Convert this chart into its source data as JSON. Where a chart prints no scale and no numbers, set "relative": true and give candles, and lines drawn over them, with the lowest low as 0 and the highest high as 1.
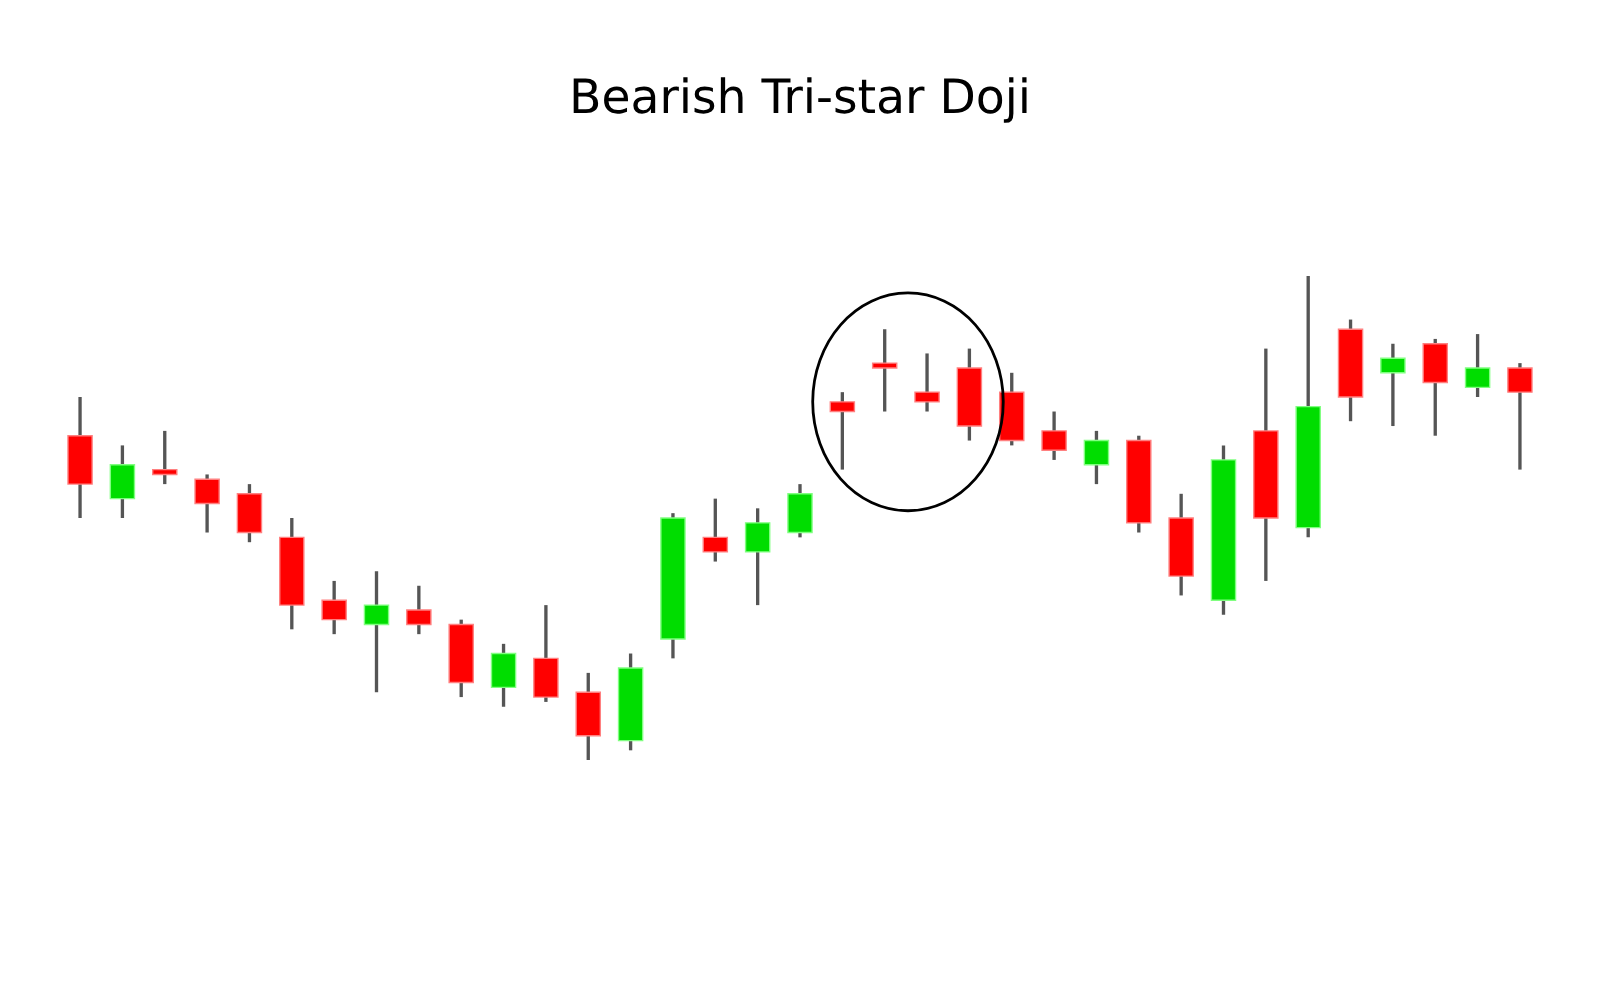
{
  "chart_data": {
    "type": "candlestick",
    "title": "Bearish Tri-star Doji",
    "relative": true,
    "tick_labels": false,
    "grid": false,
    "categories": [
      null,
      null,
      null,
      null,
      null,
      null,
      null,
      null,
      null,
      null,
      null,
      null,
      null,
      null,
      null,
      null,
      null,
      null,
      null,
      null,
      null,
      null,
      null,
      null,
      null,
      null,
      null,
      null,
      null,
      null,
      null,
      null,
      null,
      null,
      null
    ],
    "ohlc": [
      [
        0.67,
        0.75,
        0.5,
        0.57
      ],
      [
        0.54,
        0.65,
        0.5,
        0.61
      ],
      [
        0.6,
        0.68,
        0.57,
        0.59
      ],
      [
        0.58,
        0.59,
        0.47,
        0.53
      ],
      [
        0.55,
        0.57,
        0.45,
        0.47
      ],
      [
        0.46,
        0.5,
        0.27,
        0.32
      ],
      [
        0.33,
        0.37,
        0.26,
        0.29
      ],
      [
        0.28,
        0.39,
        0.14,
        0.32
      ],
      [
        0.31,
        0.36,
        0.26,
        0.28
      ],
      [
        0.28,
        0.29,
        0.13,
        0.16
      ],
      [
        0.15,
        0.24,
        0.11,
        0.22
      ],
      [
        0.21,
        0.32,
        0.12,
        0.13
      ],
      [
        0.14,
        0.18,
        0,
        0.05
      ],
      [
        0.04,
        0.22,
        0.02,
        0.19
      ],
      [
        0.25,
        0.51,
        0.21,
        0.5
      ],
      [
        0.46,
        0.54,
        0.41,
        0.43
      ],
      [
        0.43,
        0.52,
        0.32,
        0.49
      ],
      [
        0.47,
        0.57,
        0.46,
        0.55
      ],
      [
        0.74,
        0.76,
        0.6,
        0.72
      ],
      [
        0.82,
        0.89,
        0.72,
        0.81
      ],
      [
        0.76,
        0.84,
        0.72,
        0.74
      ],
      [
        0.81,
        0.85,
        0.66,
        0.69
      ],
      [
        0.76,
        0.8,
        0.65,
        0.66
      ],
      [
        0.68,
        0.72,
        0.62,
        0.64
      ],
      [
        0.61,
        0.68,
        0.57,
        0.66
      ],
      [
        0.66,
        0.67,
        0.47,
        0.49
      ],
      [
        0.5,
        0.55,
        0.34,
        0.38
      ],
      [
        0.33,
        0.65,
        0.3,
        0.62
      ],
      [
        0.68,
        0.85,
        0.37,
        0.5
      ],
      [
        0.48,
        1,
        0.46,
        0.73
      ],
      [
        0.89,
        0.91,
        0.7,
        0.75
      ],
      [
        0.8,
        0.86,
        0.69,
        0.83
      ],
      [
        0.86,
        0.87,
        0.67,
        0.78
      ],
      [
        0.77,
        0.88,
        0.75,
        0.81
      ],
      [
        0.81,
        0.82,
        0.6,
        0.76
      ]
    ],
    "colors": [
      "#ff0000",
      "#00dd00",
      "#ff0000",
      "#ff0000",
      "#ff0000",
      "#ff0000",
      "#ff0000",
      "#00dd00",
      "#ff0000",
      "#ff0000",
      "#00dd00",
      "#ff0000",
      "#ff0000",
      "#00dd00",
      "#00dd00",
      "#ff0000",
      "#00dd00",
      "#00dd00",
      "#ff0000",
      "#ff0000",
      "#ff0000",
      "#ff0000",
      "#ff0000",
      "#ff0000",
      "#00dd00",
      "#ff0000",
      "#ff0000",
      "#00dd00",
      "#ff0000",
      "#00dd00",
      "#ff0000",
      "#00dd00",
      "#ff0000",
      "#00dd00",
      "#ff0000"
    ]
  }
}
